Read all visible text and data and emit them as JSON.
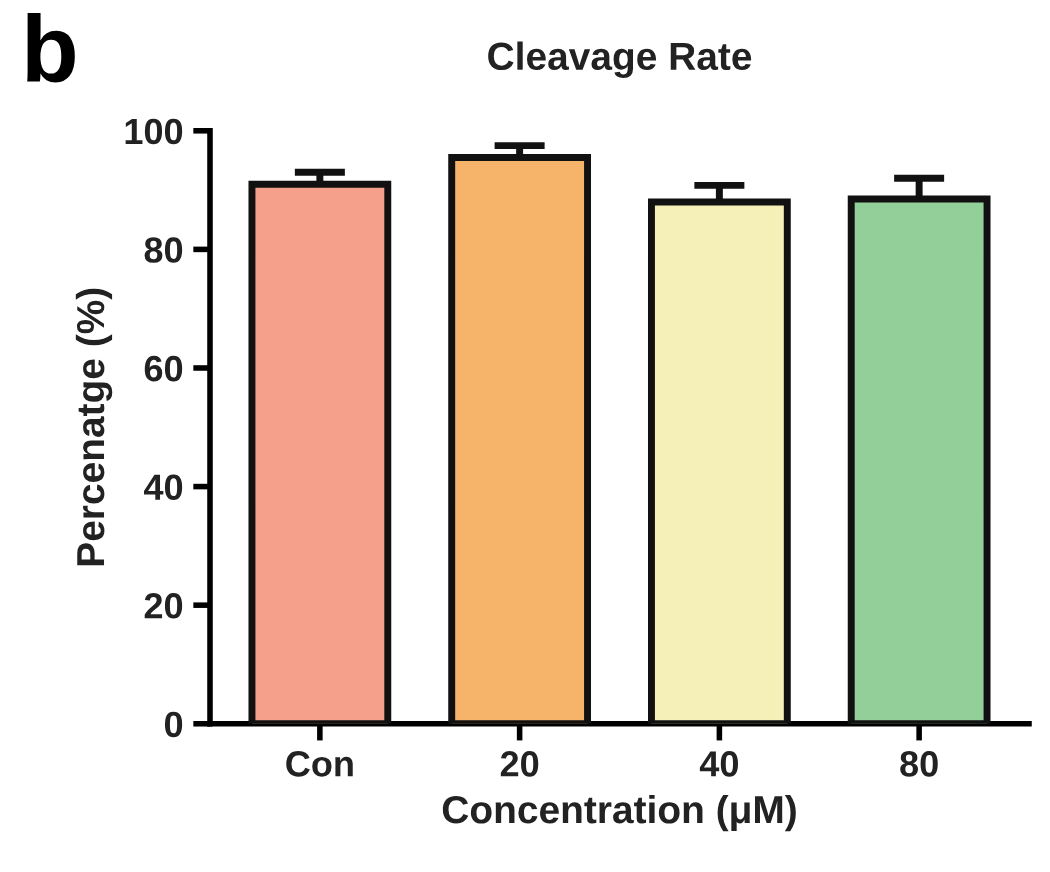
{
  "chart_data": {
    "type": "bar",
    "title": "Cleavage Rate",
    "xlabel": "Concentration (μM)",
    "ylabel": "Percenatge (%)",
    "categories": [
      "Con",
      "20",
      "40",
      "80"
    ],
    "values": [
      91,
      95.5,
      88,
      88.5
    ],
    "errors": [
      2,
      2,
      2.8,
      3.5
    ],
    "colors": [
      "#f4a08a",
      "#f5b46a",
      "#f5f0b8",
      "#93cf98"
    ],
    "ylim": [
      0,
      100
    ],
    "yticks": [
      0,
      20,
      40,
      60,
      80,
      100
    ],
    "grid": false,
    "annotations": [
      "b"
    ]
  }
}
